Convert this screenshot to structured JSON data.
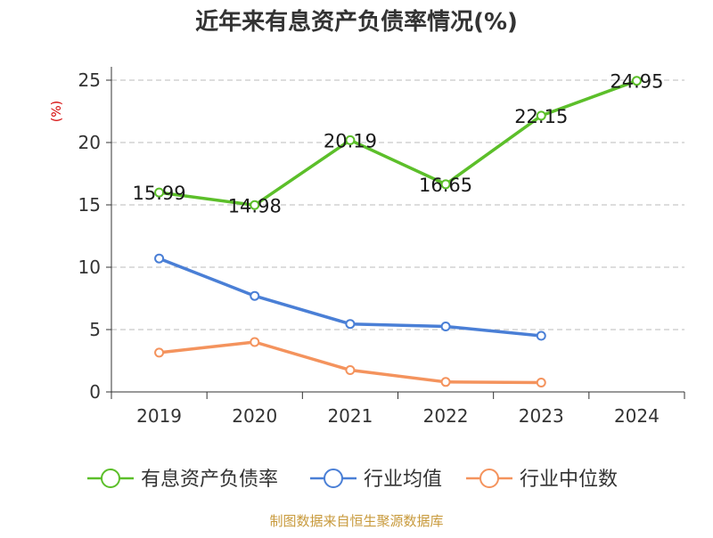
{
  "chart_data": {
    "type": "line",
    "title": "近年来有息资产负债率情况(%)",
    "ylabel": "(%)",
    "xlabel": "",
    "ylim": [
      0,
      25
    ],
    "yticks": [
      0,
      5,
      10,
      15,
      20,
      25
    ],
    "grid": "horizontal dashed",
    "legend_position": "bottom",
    "categories": [
      "2019",
      "2020",
      "2021",
      "2022",
      "2023",
      "2024"
    ],
    "series": [
      {
        "name": "有息资产负债率",
        "color": "#5cbf2a",
        "values": [
          15.99,
          14.98,
          20.19,
          16.65,
          22.15,
          24.95
        ],
        "labels": [
          "15.99",
          "14.98",
          "20.19",
          "16.65",
          "22.15",
          "24.95"
        ]
      },
      {
        "name": "行业均值",
        "color": "#4a7fd6",
        "values": [
          10.7,
          7.7,
          5.45,
          5.25,
          4.5,
          null
        ]
      },
      {
        "name": "行业中位数",
        "color": "#f4935d",
        "values": [
          3.15,
          4.0,
          1.75,
          0.8,
          0.75,
          null
        ]
      }
    ],
    "source": "制图数据来自恒生聚源数据库"
  }
}
